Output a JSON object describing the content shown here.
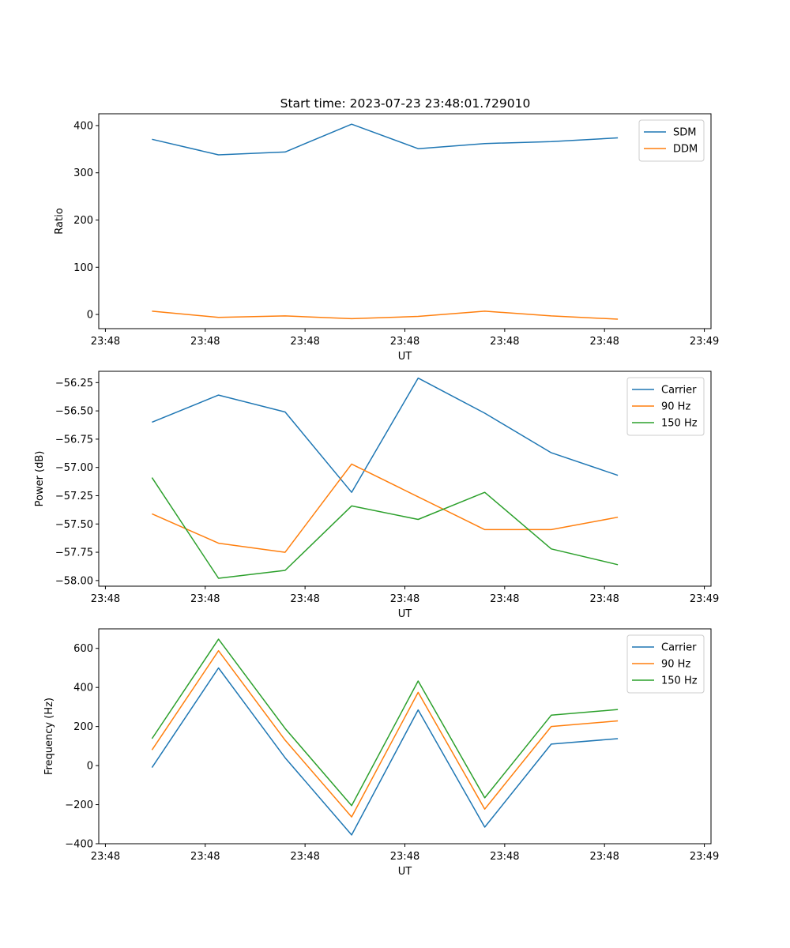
{
  "figure_title": "Start time: 2023-07-23 23:48:01.729010",
  "chart_data": [
    {
      "type": "line",
      "title": "Start time: 2023-07-23 23:48:01.729010",
      "xlabel": "UT",
      "ylabel": "Ratio",
      "x": [
        1,
        2,
        3,
        4,
        5,
        6,
        7,
        8
      ],
      "xlim": [
        0.2,
        9.4
      ],
      "xticks": [
        0.3,
        1.8,
        3.3,
        4.8,
        6.3,
        7.8,
        9.3
      ],
      "xtick_labels": [
        "23:48",
        "23:48",
        "23:48",
        "23:48",
        "23:48",
        "23:48",
        "23:49"
      ],
      "ylim": [
        -30,
        425
      ],
      "yticks": [
        0,
        100,
        200,
        300,
        400
      ],
      "ytick_labels": [
        "0",
        "100",
        "200",
        "300",
        "400"
      ],
      "legend_position": "top-right",
      "series": [
        {
          "name": "SDM",
          "color": "#1f77b4",
          "values": [
            371,
            338,
            344,
            403,
            351,
            362,
            366,
            374
          ]
        },
        {
          "name": "DDM",
          "color": "#ff7f0e",
          "values": [
            7,
            -6,
            -3,
            -9,
            -4,
            7,
            -3,
            -10
          ]
        }
      ]
    },
    {
      "type": "line",
      "xlabel": "UT",
      "ylabel": "Power (dB)",
      "x": [
        1,
        2,
        3,
        4,
        5,
        6,
        7,
        8
      ],
      "xlim": [
        0.2,
        9.4
      ],
      "xticks": [
        0.3,
        1.8,
        3.3,
        4.8,
        6.3,
        7.8,
        9.3
      ],
      "xtick_labels": [
        "23:48",
        "23:48",
        "23:48",
        "23:48",
        "23:48",
        "23:48",
        "23:49"
      ],
      "ylim": [
        -58.05,
        -56.15
      ],
      "yticks": [
        -58.0,
        -57.75,
        -57.5,
        -57.25,
        -57.0,
        -56.75,
        -56.5,
        -56.25
      ],
      "ytick_labels": [
        "−58.00",
        "−57.75",
        "−57.50",
        "−57.25",
        "−57.00",
        "−56.75",
        "−56.50",
        "−56.25"
      ],
      "legend_position": "top-right",
      "series": [
        {
          "name": "Carrier",
          "color": "#1f77b4",
          "values": [
            -56.6,
            -56.36,
            -56.51,
            -57.22,
            -56.21,
            -56.52,
            -56.87,
            -57.07
          ]
        },
        {
          "name": "90 Hz",
          "color": "#ff7f0e",
          "values": [
            -57.41,
            -57.67,
            -57.75,
            -56.97,
            -57.26,
            -57.55,
            -57.55,
            -57.44
          ]
        },
        {
          "name": "150 Hz",
          "color": "#2ca02c",
          "values": [
            -57.09,
            -57.98,
            -57.91,
            -57.34,
            -57.46,
            -57.22,
            -57.72,
            -57.86
          ]
        }
      ]
    },
    {
      "type": "line",
      "xlabel": "UT",
      "ylabel": "Frequency (Hz)",
      "x": [
        1,
        2,
        3,
        4,
        5,
        6,
        7,
        8
      ],
      "xlim": [
        0.2,
        9.4
      ],
      "xticks": [
        0.3,
        1.8,
        3.3,
        4.8,
        6.3,
        7.8,
        9.3
      ],
      "xtick_labels": [
        "23:48",
        "23:48",
        "23:48",
        "23:48",
        "23:48",
        "23:48",
        "23:49"
      ],
      "ylim": [
        -400,
        700
      ],
      "yticks": [
        -400,
        -200,
        0,
        200,
        400,
        600
      ],
      "ytick_labels": [
        "−400",
        "−200",
        "0",
        "200",
        "400",
        "600"
      ],
      "legend_position": "top-right",
      "series": [
        {
          "name": "Carrier",
          "color": "#1f77b4",
          "values": [
            -10,
            500,
            40,
            -355,
            285,
            -315,
            110,
            138
          ]
        },
        {
          "name": "90 Hz",
          "color": "#ff7f0e",
          "values": [
            80,
            588,
            130,
            -263,
            375,
            -223,
            200,
            229
          ]
        },
        {
          "name": "150 Hz",
          "color": "#2ca02c",
          "values": [
            138,
            647,
            190,
            -205,
            433,
            -165,
            258,
            287
          ]
        }
      ]
    }
  ]
}
